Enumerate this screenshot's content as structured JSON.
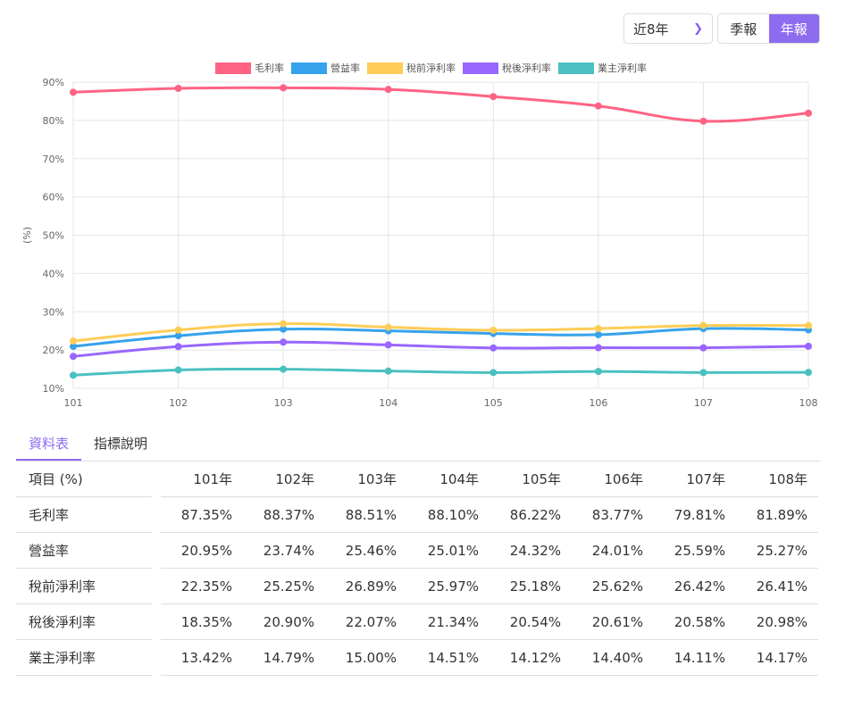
{
  "controls": {
    "range": "近8年",
    "range_icon": "chevron-down-icon",
    "seg": [
      "季報",
      "年報"
    ],
    "active": "年報"
  },
  "chart_data": {
    "type": "line",
    "xlabel": "",
    "ylabel": "(%)",
    "ylim": [
      10,
      90
    ],
    "yticks": [
      "10%",
      "20%",
      "30%",
      "40%",
      "50%",
      "60%",
      "70%",
      "80%",
      "90%"
    ],
    "grid": true,
    "legend": "top",
    "categories": [
      "101",
      "102",
      "103",
      "104",
      "105",
      "106",
      "107",
      "108"
    ],
    "series": [
      {
        "name": "毛利率",
        "color": "#ff6384",
        "values": [
          87.35,
          88.37,
          88.51,
          88.1,
          86.22,
          83.77,
          79.81,
          81.89
        ]
      },
      {
        "name": "營益率",
        "color": "#36a2eb",
        "values": [
          20.95,
          23.74,
          25.46,
          25.01,
          24.32,
          24.01,
          25.59,
          25.27
        ]
      },
      {
        "name": "稅前淨利率",
        "color": "#ffcd56",
        "values": [
          22.35,
          25.25,
          26.89,
          25.97,
          25.18,
          25.62,
          26.42,
          26.41
        ]
      },
      {
        "name": "稅後淨利率",
        "color": "#9966ff",
        "values": [
          18.35,
          20.9,
          22.07,
          21.34,
          20.54,
          20.61,
          20.58,
          20.98
        ]
      },
      {
        "name": "業主淨利率",
        "color": "#4bc0c0",
        "values": [
          13.42,
          14.79,
          15.0,
          14.51,
          14.12,
          14.4,
          14.11,
          14.17
        ]
      }
    ]
  },
  "tabs": [
    "資料表",
    "指標說明"
  ],
  "table": {
    "header": [
      "項目 (%)",
      "101年",
      "102年",
      "103年",
      "104年",
      "105年",
      "106年",
      "107年",
      "108年"
    ],
    "rows": [
      [
        "毛利率",
        "87.35%",
        "88.37%",
        "88.51%",
        "88.10%",
        "86.22%",
        "83.77%",
        "79.81%",
        "81.89%"
      ],
      [
        "營益率",
        "20.95%",
        "23.74%",
        "25.46%",
        "25.01%",
        "24.32%",
        "24.01%",
        "25.59%",
        "25.27%"
      ],
      [
        "稅前淨利率",
        "22.35%",
        "25.25%",
        "26.89%",
        "25.97%",
        "25.18%",
        "25.62%",
        "26.42%",
        "26.41%"
      ],
      [
        "稅後淨利率",
        "18.35%",
        "20.90%",
        "22.07%",
        "21.34%",
        "20.54%",
        "20.61%",
        "20.58%",
        "20.98%"
      ],
      [
        "業主淨利率",
        "13.42%",
        "14.79%",
        "15.00%",
        "14.51%",
        "14.12%",
        "14.40%",
        "14.11%",
        "14.17%"
      ]
    ]
  }
}
